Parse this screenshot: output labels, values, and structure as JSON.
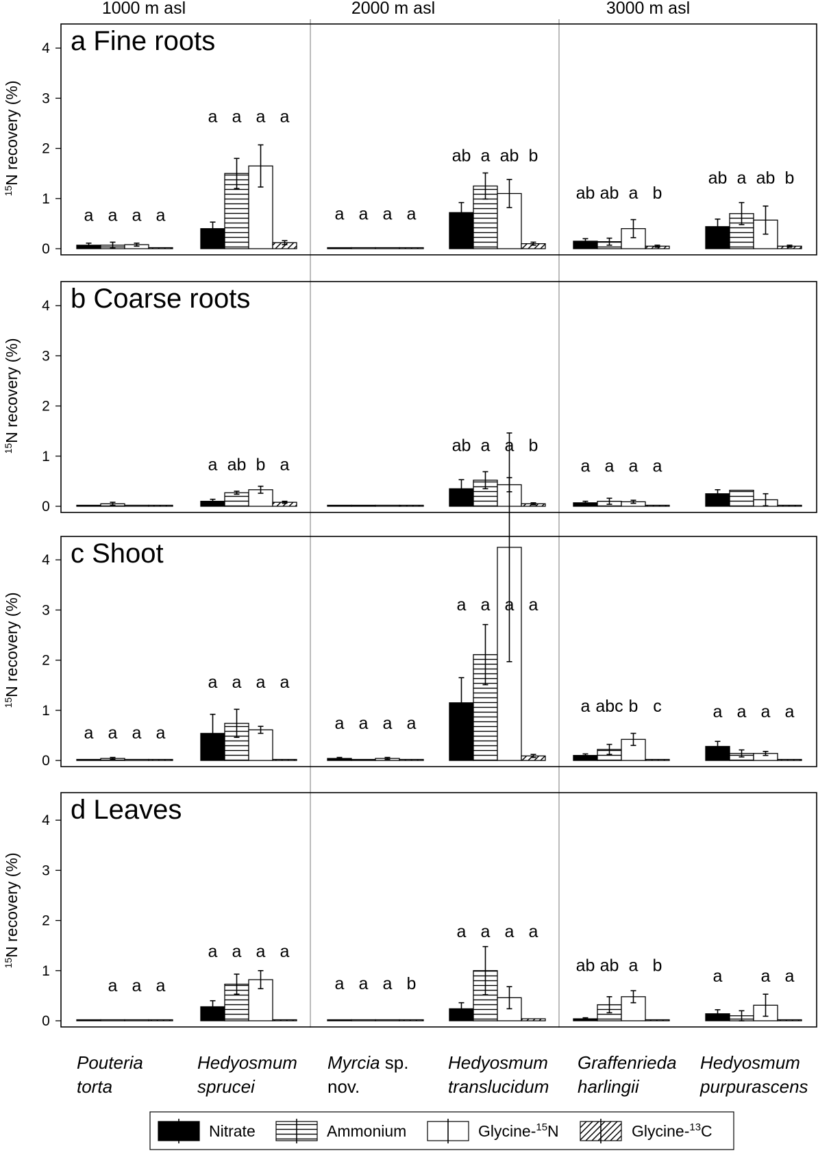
{
  "chart_data": {
    "type": "bar",
    "elevations": [
      "1000 m asl",
      "2000 m asl",
      "3000 m asl"
    ],
    "species": [
      {
        "line1": "Pouteria",
        "line2": "torta",
        "italic2": true
      },
      {
        "line1": "Hedyosmum",
        "line2": "sprucei",
        "italic2": true
      },
      {
        "line1": "Myrcia",
        "line1_suffix": " sp.",
        "line2": "nov.",
        "italic2": false
      },
      {
        "line1": "Hedyosmum",
        "line2": "translucidum",
        "italic2": true
      },
      {
        "line1": "Graffenrieda",
        "line2": "harlingii",
        "italic2": true
      },
      {
        "line1": "Hedyosmum",
        "line2": "purpurascens",
        "italic2": true
      }
    ],
    "ylabel": {
      "pre": "15",
      "main": "N recovery (%)"
    },
    "ylim": [
      0,
      4.4
    ],
    "yticks": [
      0,
      1,
      2,
      3,
      4
    ],
    "legend": [
      {
        "key": "nitrate",
        "label": "Nitrate",
        "sup": ""
      },
      {
        "key": "ammonium",
        "label": "Ammonium",
        "sup": ""
      },
      {
        "key": "glycine15",
        "label": "Glycine-",
        "sup": "15",
        "suffix": "N"
      },
      {
        "key": "glycine13",
        "label": "Glycine-",
        "sup": "13",
        "suffix": "C"
      }
    ],
    "panels": [
      {
        "title": "a Fine roots",
        "values": [
          [
            0.07,
            0.07,
            0.08,
            0.01
          ],
          [
            0.4,
            1.5,
            1.65,
            0.12
          ],
          [
            0.01,
            0.01,
            0.01,
            0.01
          ],
          [
            0.72,
            1.25,
            1.1,
            0.1
          ],
          [
            0.15,
            0.14,
            0.4,
            0.05
          ],
          [
            0.44,
            0.7,
            0.57,
            0.05
          ]
        ],
        "errors": [
          [
            0.04,
            0.06,
            0.03,
            0.0
          ],
          [
            0.13,
            0.3,
            0.42,
            0.04
          ],
          [
            0.0,
            0.0,
            0.0,
            0.0
          ],
          [
            0.2,
            0.26,
            0.28,
            0.03
          ],
          [
            0.05,
            0.07,
            0.18,
            0.02
          ],
          [
            0.15,
            0.22,
            0.28,
            0.02
          ]
        ],
        "letters": [
          [
            "a",
            "a",
            "a",
            "a"
          ],
          [
            "a",
            "a",
            "a",
            "a"
          ],
          [
            "a",
            "a",
            "a",
            "a"
          ],
          [
            "ab",
            "a",
            "ab",
            "b"
          ],
          [
            "ab",
            "ab",
            "a",
            "b"
          ],
          [
            "ab",
            "a",
            "ab",
            "b"
          ]
        ],
        "letter_y": [
          0.55,
          2.52,
          0.58,
          1.74,
          1.0,
          1.3
        ]
      },
      {
        "title": "b Coarse roots",
        "values": [
          [
            0.02,
            0.05,
            0.01,
            0.01
          ],
          [
            0.1,
            0.27,
            0.33,
            0.08
          ],
          [
            0,
            0,
            0,
            0
          ],
          [
            0.35,
            0.52,
            0.43,
            0.05
          ],
          [
            0.07,
            0.1,
            0.09,
            0.01
          ],
          [
            0.25,
            0.32,
            0.13,
            0.02
          ]
        ],
        "errors": [
          [
            0.01,
            0.03,
            0.0,
            0.0
          ],
          [
            0.04,
            0.03,
            0.07,
            0.02
          ],
          [
            0,
            0,
            0,
            0
          ],
          [
            0.18,
            0.17,
            0.14,
            0.02
          ],
          [
            0.03,
            0.06,
            0.03,
            0.0
          ],
          [
            0.08,
            0.0,
            0.12,
            0.0
          ]
        ],
        "letters": [
          [],
          [
            "a",
            "ab",
            "b",
            "a"
          ],
          [],
          [
            "ab",
            "a",
            "a",
            "b"
          ],
          [
            "a",
            "a",
            "a",
            "a"
          ],
          []
        ],
        "letter_y": [
          0,
          0.72,
          0,
          1.1,
          0.69,
          0
        ]
      },
      {
        "title": "c Shoot",
        "values": [
          [
            0.01,
            0.04,
            0.01,
            0.01
          ],
          [
            0.54,
            0.74,
            0.61,
            0.02
          ],
          [
            0.04,
            0.01,
            0.04,
            0.01
          ],
          [
            1.15,
            2.11,
            4.25,
            0.09
          ],
          [
            0.1,
            0.22,
            0.42,
            0.01
          ],
          [
            0.28,
            0.14,
            0.14,
            0.01
          ]
        ],
        "errors": [
          [
            0.0,
            0.02,
            0.0,
            0.0
          ],
          [
            0.38,
            0.28,
            0.07,
            0.0
          ],
          [
            0.02,
            0.0,
            0.02,
            0.0
          ],
          [
            0.5,
            0.6,
            2.28,
            0.03
          ],
          [
            0.03,
            0.1,
            0.12,
            0.0
          ],
          [
            0.1,
            0.07,
            0.04,
            0.0
          ]
        ],
        "letters": [
          [
            "a",
            "a",
            "a",
            "a"
          ],
          [
            "a",
            "a",
            "a",
            "a"
          ],
          [
            "a",
            "a",
            "a",
            "a"
          ],
          [
            "a",
            "a",
            "a",
            "a"
          ],
          [
            "a",
            "abc",
            "b",
            "c"
          ],
          [
            "a",
            "a",
            "a",
            "a"
          ]
        ],
        "letter_y": [
          0.44,
          1.45,
          0.63,
          2.99,
          0.97,
          0.86
        ]
      },
      {
        "title": "d Leaves",
        "values": [
          [
            0.01,
            0.01,
            0.01,
            0.01
          ],
          [
            0.28,
            0.73,
            0.82,
            0.01
          ],
          [
            0.01,
            0.01,
            0.01,
            0.01
          ],
          [
            0.24,
            1.0,
            0.46,
            0.04
          ],
          [
            0.04,
            0.32,
            0.48,
            0.01
          ],
          [
            0.14,
            0.1,
            0.31,
            0.0
          ]
        ],
        "errors": [
          [
            0,
            0,
            0,
            0
          ],
          [
            0.12,
            0.2,
            0.18,
            0.0
          ],
          [
            0,
            0,
            0,
            0
          ],
          [
            0.12,
            0.48,
            0.22,
            0.01
          ],
          [
            0.02,
            0.16,
            0.12,
            0.0
          ],
          [
            0.08,
            0.1,
            0.22,
            0.0
          ]
        ],
        "letters": [
          [
            "",
            "a",
            "a",
            "a"
          ],
          [
            "a",
            "a",
            "a",
            "a"
          ],
          [
            "a",
            "a",
            "a",
            "b"
          ],
          [
            "a",
            "a",
            "a",
            "a"
          ],
          [
            "ab",
            "ab",
            "a",
            "b"
          ],
          [
            "a",
            "",
            "a",
            "a"
          ]
        ],
        "letter_y": [
          0.59,
          1.27,
          0.63,
          1.67,
          0.99,
          0.78
        ]
      }
    ]
  }
}
